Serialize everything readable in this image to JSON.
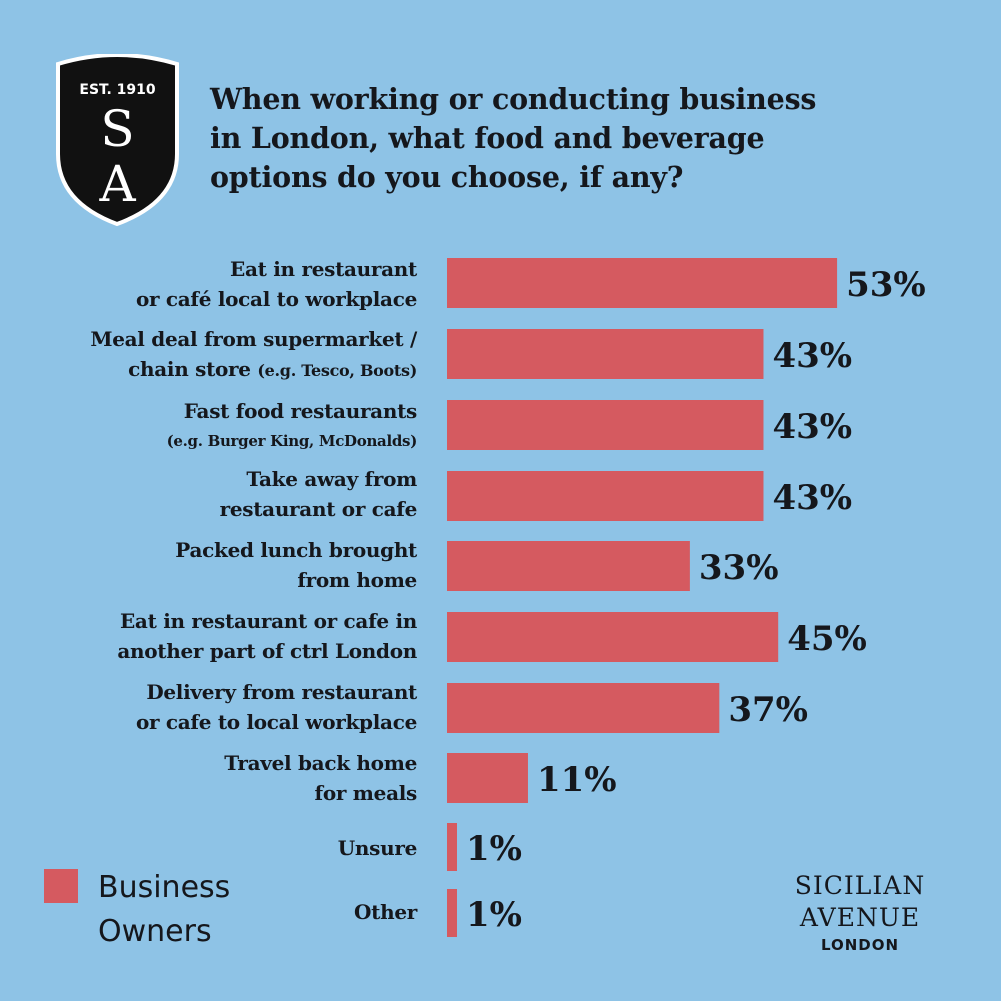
{
  "logo": {
    "est": "EST. 1910",
    "letter_top": "S",
    "letter_bottom": "A",
    "icon": "shield-icon",
    "fill": "#111111",
    "outline": "#ffffff"
  },
  "chart_data": {
    "type": "bar",
    "orientation": "horizontal",
    "title": "When working or conducting business in London, what food and beverage options  do you choose, if any?",
    "title_lines": [
      "When working or conducting business",
      "in London, what food and beverage",
      "options  do you choose, if any?"
    ],
    "categories": [
      "Eat in restaurant or café local to workplace",
      "Meal deal from supermarket / chain store (e.g. Tesco, Boots)",
      "Fast food restaurants (e.g. Burger King, McDonalds)",
      "Take away from restaurant or cafe",
      "Packed lunch brought from home",
      "Eat in restaurant or cafe in another part of ctrl London",
      "Delivery from restaurant or cafe to local workplace",
      "Travel back home for meals",
      "Unsure",
      "Other"
    ],
    "series": [
      {
        "name": "Business Owners",
        "values": [
          53,
          43,
          43,
          43,
          33,
          45,
          37,
          11,
          1,
          1
        ],
        "labels": [
          "53%",
          "43%",
          "43%",
          "43%",
          "33%",
          "45%",
          "37%",
          "11%",
          "1%",
          "1%"
        ],
        "color": "#d55a60"
      }
    ],
    "xlim": [
      0,
      100
    ],
    "grid": false,
    "legend": "bottom-left"
  },
  "labels": {
    "cat0": {
      "l1": "Eat in restaurant",
      "l2": "or café local to workplace"
    },
    "cat1": {
      "l1": "Meal deal from supermarket /",
      "l2": "chain store ",
      "l2_small": "(e.g. Tesco, Boots)"
    },
    "cat2": {
      "l1": "Fast food restaurants",
      "l2_small": "(e.g. Burger King, McDonalds)"
    },
    "cat3": {
      "l1": "Take away from",
      "l2": "restaurant or cafe"
    },
    "cat4": {
      "l1": "Packed lunch brought",
      "l2": "from home"
    },
    "cat5": {
      "l1": "Eat in restaurant or cafe in",
      "l2": "another part of ctrl London"
    },
    "cat6": {
      "l1": "Delivery from restaurant",
      "l2": "or cafe to local workplace"
    },
    "cat7": {
      "l1": "Travel back home",
      "l2": "for meals"
    },
    "cat8": {
      "l1": "Unsure"
    },
    "cat9": {
      "l1": "Other"
    }
  },
  "legend": {
    "name_l1": "Business",
    "name_l2": "Owners"
  },
  "brand": {
    "line1": "SICILIAN",
    "line2": "AVENUE",
    "line3": "LONDON"
  },
  "colors": {
    "background": "#8ec3e6",
    "text": "#15171c",
    "bar": "#d55a60"
  }
}
